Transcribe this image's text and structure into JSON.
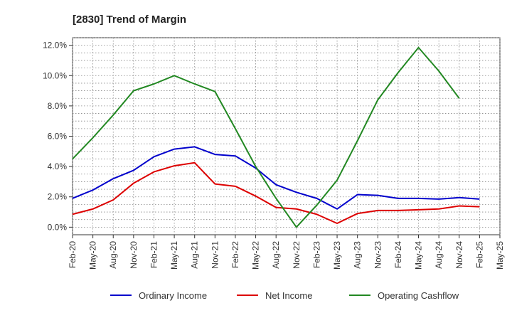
{
  "chart_data": {
    "type": "line",
    "title": "[2830]  Trend of Margin",
    "xlabel": "",
    "ylabel": "",
    "x": [
      "Feb-20",
      "May-20",
      "Aug-20",
      "Nov-20",
      "Feb-21",
      "May-21",
      "Aug-21",
      "Nov-21",
      "Feb-22",
      "May-22",
      "Aug-22",
      "Nov-22",
      "Feb-23",
      "May-23",
      "Aug-23",
      "Nov-23",
      "Feb-24",
      "May-24",
      "Aug-24",
      "Nov-24",
      "Feb-25",
      "May-25"
    ],
    "ylim": [
      -0.5,
      12.5
    ],
    "yticks": [
      0.0,
      2.0,
      4.0,
      6.0,
      8.0,
      10.0,
      12.0
    ],
    "ytick_labels": [
      "0.0%",
      "2.0%",
      "4.0%",
      "6.0%",
      "8.0%",
      "10.0%",
      "12.0%"
    ],
    "grid": true,
    "legend_position": "bottom",
    "series": [
      {
        "name": "Ordinary Income",
        "color": "#0000cc",
        "values": [
          1.9,
          2.45,
          3.2,
          3.75,
          4.65,
          5.15,
          5.3,
          4.8,
          4.7,
          3.9,
          2.8,
          2.3,
          1.9,
          1.2,
          2.15,
          2.1,
          1.9,
          1.9,
          1.85,
          1.95,
          1.85,
          null
        ]
      },
      {
        "name": "Net Income",
        "color": "#dd0000",
        "values": [
          0.85,
          1.2,
          1.8,
          2.9,
          3.65,
          4.05,
          4.25,
          2.85,
          2.7,
          2.05,
          1.3,
          1.2,
          0.85,
          0.25,
          0.9,
          1.1,
          1.1,
          1.15,
          1.2,
          1.4,
          1.35,
          null
        ]
      },
      {
        "name": "Operating Cashflow",
        "color": "#228822",
        "values": [
          4.5,
          5.9,
          7.4,
          9.0,
          9.45,
          10.0,
          9.45,
          8.95,
          6.5,
          4.0,
          1.9,
          0.0,
          1.45,
          3.1,
          5.7,
          8.4,
          10.2,
          11.85,
          10.3,
          8.5,
          null,
          null
        ]
      }
    ]
  }
}
